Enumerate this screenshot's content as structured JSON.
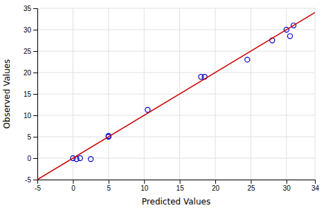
{
  "chart_data": {
    "type": "scatter",
    "x_label": "Predicted Values",
    "y_label": "Observed Values",
    "series": [
      {
        "type": "scatter",
        "color": "#0000cc",
        "marker": "circle",
        "x": [
          0,
          0.5,
          1,
          2.5,
          5,
          5,
          10.5,
          18,
          18.5,
          24.5,
          28,
          30,
          30.5,
          31
        ],
        "values": [
          0,
          -0.2,
          0,
          -0.2,
          5,
          5.2,
          11.3,
          19,
          19,
          23,
          27.5,
          30,
          28.5,
          31
        ]
      },
      {
        "type": "line",
        "color": "#cc0000",
        "x": [
          -5,
          34
        ],
        "values": [
          -5,
          34
        ]
      }
    ],
    "xlim": [
      -5,
      34
    ],
    "ylim": [
      -5,
      35
    ],
    "xticks": [
      -5,
      0,
      5,
      10,
      15,
      20,
      25,
      30,
      34
    ],
    "yticks": [
      -5,
      0,
      5,
      10,
      15,
      20,
      25,
      30,
      35
    ],
    "grid": true
  }
}
